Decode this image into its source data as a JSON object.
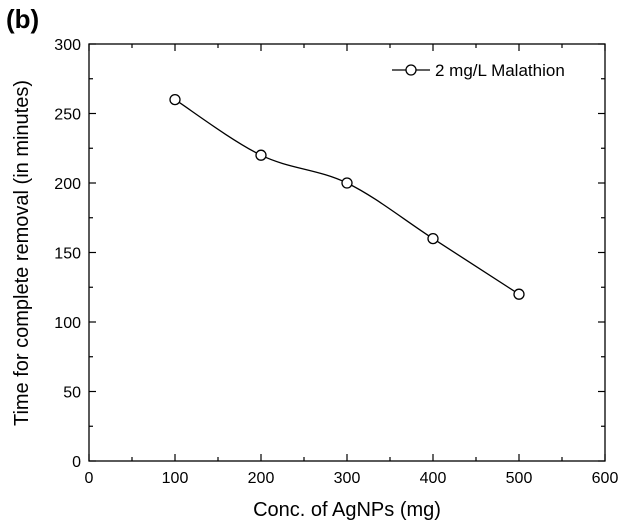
{
  "panel_label": "(b)",
  "chart_data": {
    "type": "line",
    "title": "",
    "xlabel": "Conc. of AgNPs (mg)",
    "ylabel": "Time for complete removal (in minutes)",
    "xlim": [
      0,
      600
    ],
    "ylim": [
      0,
      300
    ],
    "xticks": [
      0,
      100,
      200,
      300,
      400,
      500,
      600
    ],
    "yticks": [
      0,
      50,
      100,
      150,
      200,
      250,
      300
    ],
    "grid": false,
    "legend_position": "top-right",
    "series": [
      {
        "name": "2 mg/L Malathion",
        "marker": "open-circle",
        "color": "#000000",
        "x": [
          100,
          200,
          300,
          400,
          500
        ],
        "y": [
          260,
          220,
          200,
          160,
          120
        ]
      }
    ]
  }
}
